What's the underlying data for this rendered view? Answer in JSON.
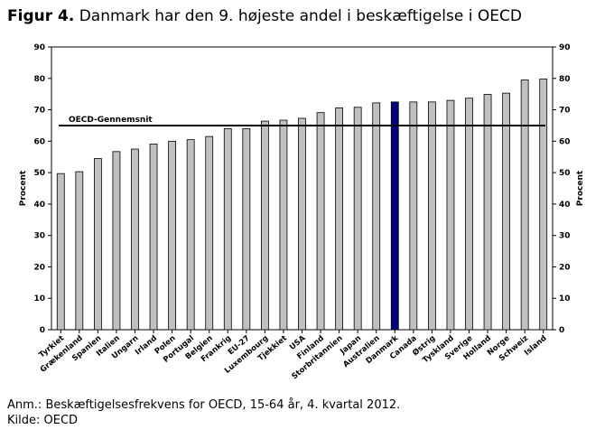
{
  "title_bold": "Figur 4.",
  "title_rest": " Danmark har den 9. højeste andel i beskæftigelse i OECD",
  "note": "Anm.: Beskæftigelsesfrekvens for OECD, 15-64 år, 4. kvartal 2012.",
  "source": "Kilde: OECD",
  "chart_data": {
    "type": "bar",
    "categories": [
      "Tyrkiet",
      "Grækenland",
      "Spanien",
      "Italien",
      "Ungarn",
      "Irland",
      "Polen",
      "Portugal",
      "Belgien",
      "Frankrig",
      "EU-27",
      "Luxembourg",
      "Tjekkiet",
      "USA",
      "Finland",
      "Storbritannien",
      "Japan",
      "Australien",
      "Danmark",
      "Canada",
      "Østrig",
      "Tyskland",
      "Sverige",
      "Holland",
      "Norge",
      "Schweiz",
      "Island"
    ],
    "values": [
      49.7,
      50.3,
      54.5,
      56.7,
      57.5,
      59.1,
      60.0,
      60.5,
      61.5,
      64.0,
      64.0,
      66.4,
      66.7,
      67.3,
      69.1,
      70.6,
      70.8,
      72.2,
      72.5,
      72.5,
      72.5,
      73.0,
      73.7,
      74.9,
      75.3,
      79.5,
      79.8
    ],
    "highlight": "Danmark",
    "bar_color": "#c0c0c0",
    "highlight_color": "#000080",
    "ylabel": "Procent",
    "ylabel_right": "Procent",
    "ylim": [
      0,
      90
    ],
    "yticks": [
      0,
      10,
      20,
      30,
      40,
      50,
      60,
      70,
      80,
      90
    ],
    "reference_line": {
      "label": "OECD-Gennemsnit",
      "value": 65
    },
    "grid": false,
    "legend": "none"
  }
}
